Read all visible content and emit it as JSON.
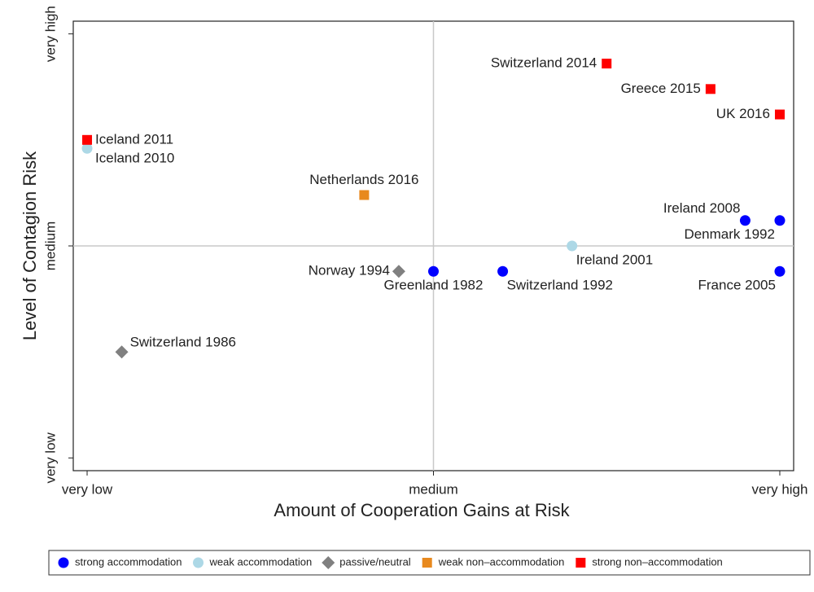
{
  "chart_data": {
    "type": "scatter",
    "xlabel": "Amount of Cooperation Gains at Risk",
    "ylabel": "Level of Contagion Risk",
    "xlim": [
      -0.02,
      1.02
    ],
    "ylim": [
      -0.03,
      1.03
    ],
    "xticks": [
      {
        "value": 0,
        "label": "very low"
      },
      {
        "value": 0.5,
        "label": "medium"
      },
      {
        "value": 1,
        "label": "very high"
      }
    ],
    "yticks": [
      {
        "value": 0,
        "label": "very low"
      },
      {
        "value": 0.5,
        "label": "medium"
      },
      {
        "value": 1,
        "label": "very high"
      }
    ],
    "reference_lines": {
      "x": 0.5,
      "y": 0.5
    },
    "legend": "bottom",
    "series": [
      {
        "name": "strong accommodation",
        "color": "#0000ff",
        "marker": "circle",
        "x": [
          0.95,
          1,
          0.5,
          0.6,
          1
        ],
        "y": [
          0.56,
          0.56,
          0.44,
          0.44,
          0.44
        ],
        "labels": [
          "Ireland 2008",
          "Denmark 1992",
          "Greenland 1982",
          "Switzerland 1992",
          "France 2005"
        ]
      },
      {
        "name": "weak accommodation",
        "color": "#add8e6",
        "marker": "circle",
        "x": [
          0,
          0.7
        ],
        "y": [
          0.73,
          0.5
        ],
        "labels": [
          "Iceland 2010",
          "Ireland 2001"
        ]
      },
      {
        "name": "passive/neutral",
        "color": "#808080",
        "marker": "diamond",
        "x": [
          0.45,
          0.05
        ],
        "y": [
          0.44,
          0.25
        ],
        "labels": [
          "Norway 1994",
          "Switzerland 1986"
        ]
      },
      {
        "name": "weak non–accommodation",
        "color": "#e8891e",
        "marker": "square",
        "x": [
          0.4
        ],
        "y": [
          0.62
        ],
        "labels": [
          "Netherlands 2016"
        ]
      },
      {
        "name": "strong non–accommodation",
        "color": "#ff0000",
        "marker": "square",
        "x": [
          0.75,
          0.9,
          1,
          0
        ],
        "y": [
          0.93,
          0.87,
          0.81,
          0.75
        ],
        "labels": [
          "Switzerland 2014",
          "Greece 2015",
          "UK 2016",
          "Iceland 2011"
        ]
      }
    ]
  }
}
